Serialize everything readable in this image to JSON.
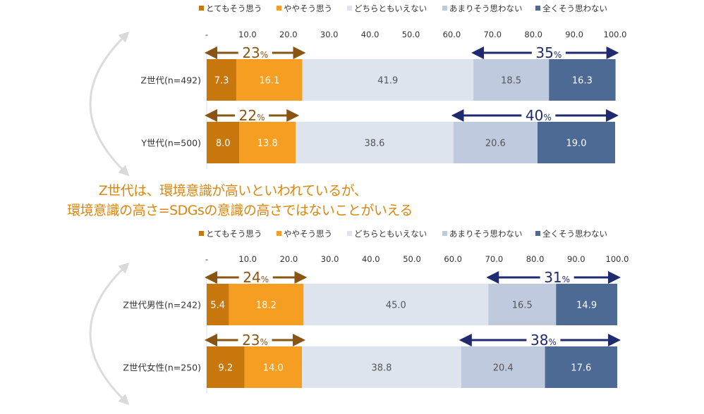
{
  "colors": {
    "strongly_agree": "#C8770C",
    "somewhat_agree": "#F69E22",
    "neutral": "#DDE4EE",
    "somewhat_disagree": "#BFCADE",
    "strongly_disagree": "#4D6A95",
    "agree_arrow": "#8A5513",
    "disagree_arrow": "#1F2B6E",
    "caption": "#D9860E"
  },
  "caption": {
    "line1": "Z世代は、環境意識が高いといわれているが、",
    "line2": "環境意識の高さ=SDGsの意識の高さではないことがいえる"
  },
  "chart_data": [
    {
      "type": "bar",
      "orientation": "horizontal-stacked",
      "xlim": [
        0,
        100
      ],
      "ticks": [
        "-",
        "10.0",
        "20.0",
        "30.0",
        "40.0",
        "50.0",
        "60.0",
        "70.0",
        "80.0",
        "90.0",
        "100.0"
      ],
      "legend": [
        "とてもそう思う",
        "ややそう思う",
        "どちらともいえない",
        "あまりそう思わない",
        "全くそう思わない"
      ],
      "legend_position": "top",
      "categories": [
        "Z世代(n=492)",
        "Y世代(n=500)"
      ],
      "series": [
        {
          "name": "とてもそう思う",
          "values": [
            7.3,
            8.0
          ]
        },
        {
          "name": "ややそう思う",
          "values": [
            16.1,
            13.8
          ]
        },
        {
          "name": "どちらともいえない",
          "values": [
            41.9,
            38.6
          ]
        },
        {
          "name": "あまりそう思わない",
          "values": [
            18.5,
            20.6
          ]
        },
        {
          "name": "全くそう思わない",
          "values": [
            16.3,
            19.0
          ]
        }
      ],
      "annotations": {
        "agree": [
          "23",
          "22"
        ],
        "disagree": [
          "35",
          "40"
        ],
        "unit": "%"
      }
    },
    {
      "type": "bar",
      "orientation": "horizontal-stacked",
      "xlim": [
        0,
        100
      ],
      "ticks": [
        "-",
        "10.0",
        "20.0",
        "30.0",
        "40.0",
        "50.0",
        "60.0",
        "70.0",
        "80.0",
        "90.0",
        "100.0"
      ],
      "legend": [
        "とてもそう思う",
        "ややそう思う",
        "どちらともいえない",
        "あまりそう思わない",
        "全くそう思わない"
      ],
      "legend_position": "top",
      "categories": [
        "Z世代男性(n=242)",
        "Z世代女性(n=250)"
      ],
      "series": [
        {
          "name": "とてもそう思う",
          "values": [
            5.4,
            9.2
          ]
        },
        {
          "name": "ややそう思う",
          "values": [
            18.2,
            14.0
          ]
        },
        {
          "name": "どちらともいえない",
          "values": [
            45.0,
            38.8
          ]
        },
        {
          "name": "あまりそう思わない",
          "values": [
            16.5,
            20.4
          ]
        },
        {
          "name": "全くそう思わない",
          "values": [
            14.9,
            17.6
          ]
        }
      ],
      "annotations": {
        "agree": [
          "24",
          "23"
        ],
        "disagree": [
          "31",
          "38"
        ],
        "unit": "%"
      }
    }
  ]
}
